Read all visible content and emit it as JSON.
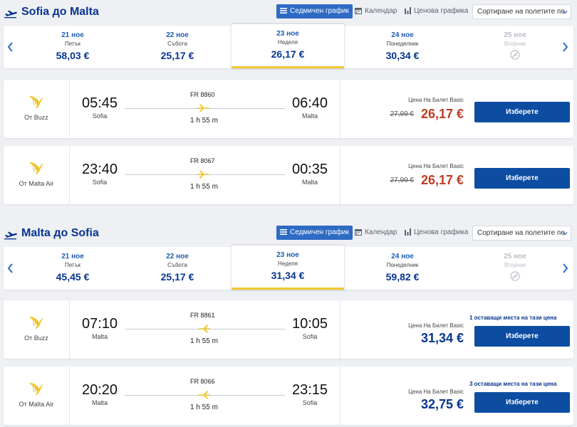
{
  "view_options": {
    "weekly": "Седмичен график",
    "calendar": "Календар",
    "price_chart": "Ценова графика"
  },
  "sort_label": "Сортиране на полетите по",
  "icons": [
    "plane-takeoff-icon",
    "list-icon",
    "calendar-icon",
    "bar-chart-icon",
    "chevron-down-icon",
    "chevron-left-icon",
    "chevron-right-icon",
    "no-flights-icon",
    "ryanair-harp-icon",
    "plane-right-icon",
    "plane-left-icon"
  ],
  "colors": {
    "brand_blue": "#073590",
    "accent_blue": "#2d6bc4",
    "button_blue": "#0c4da2",
    "sale_red": "#c23b22",
    "selected_bar": "#f1c933"
  },
  "outbound": {
    "title": "Sofia до Malta",
    "dates": [
      {
        "date": "21 ное",
        "weekday": "Петък",
        "price": "58,03 €"
      },
      {
        "date": "22 ное",
        "weekday": "Събота",
        "price": "25,17 €"
      },
      {
        "date": "23 ное",
        "weekday": "Неделя",
        "price": "26,17 €"
      },
      {
        "date": "24 ное",
        "weekday": "Понеделник",
        "price": "30,34 €"
      },
      {
        "date": "25 ное",
        "weekday": "Вторник",
        "price": ""
      }
    ],
    "flights": [
      {
        "carrier": "От Buzz",
        "depart_time": "05:45",
        "depart_city": "Sofia",
        "flight_no": "FR 8860",
        "duration": "1 h 55 m",
        "arrive_time": "06:40",
        "arrive_city": "Malta",
        "price_label": "Цена На Билет Basic",
        "old_price": "27,99 €",
        "price": "26,17 €",
        "seats_note": "",
        "button": "Изберете"
      },
      {
        "carrier": "От Malta Air",
        "depart_time": "23:40",
        "depart_city": "Sofia",
        "flight_no": "FR 8067",
        "duration": "1 h 55 m",
        "arrive_time": "00:35",
        "arrive_city": "Malta",
        "price_label": "Цена На Билет Basic",
        "old_price": "27,99 €",
        "price": "26,17 €",
        "seats_note": "",
        "button": "Изберете"
      }
    ]
  },
  "inbound": {
    "title": "Malta до Sofia",
    "dates": [
      {
        "date": "21 ное",
        "weekday": "Петък",
        "price": "45,45 €"
      },
      {
        "date": "22 ное",
        "weekday": "Събота",
        "price": "25,17 €"
      },
      {
        "date": "23 ное",
        "weekday": "Неделя",
        "price": "31,34 €"
      },
      {
        "date": "24 ное",
        "weekday": "Понеделник",
        "price": "59,82 €"
      },
      {
        "date": "25 ное",
        "weekday": "Вторник",
        "price": ""
      }
    ],
    "flights": [
      {
        "carrier": "От Buzz",
        "depart_time": "07:10",
        "depart_city": "Malta",
        "flight_no": "FR 8861",
        "duration": "1 h 55 m",
        "arrive_time": "10:05",
        "arrive_city": "Sofia",
        "price_label": "Цена На Билет Basic",
        "old_price": "",
        "price": "31,34 €",
        "seats_note": "1 оставащи места на тази цена",
        "button": "Изберете"
      },
      {
        "carrier": "От Malta Air",
        "depart_time": "20:20",
        "depart_city": "Malta",
        "flight_no": "FR 8066",
        "duration": "1 h 55 m",
        "arrive_time": "23:15",
        "arrive_city": "Sofia",
        "price_label": "Цена На Билет Basic",
        "old_price": "",
        "price": "32,75 €",
        "seats_note": "3 оставащи места на тази цена",
        "button": "Изберете"
      }
    ]
  }
}
